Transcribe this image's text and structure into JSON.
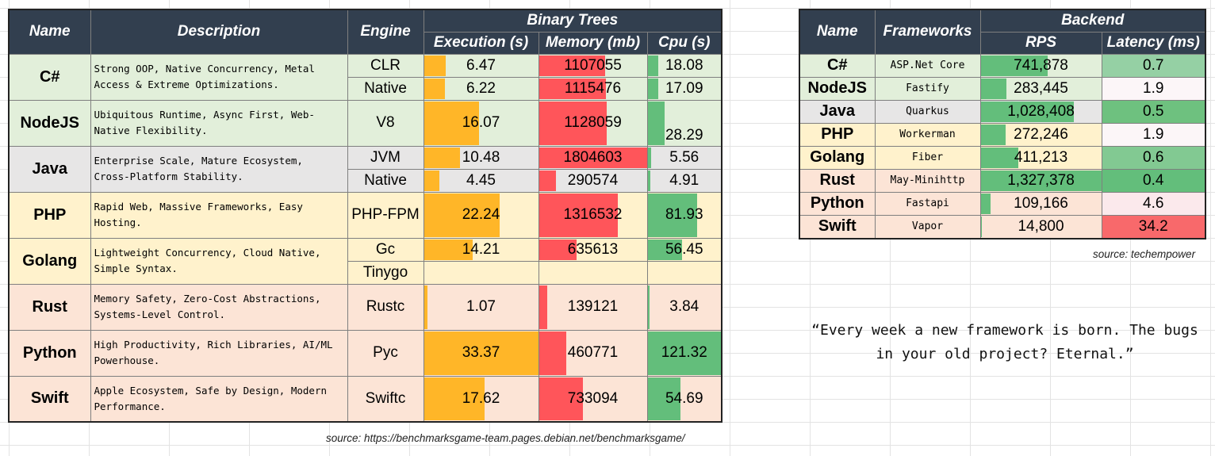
{
  "main_table": {
    "headers": {
      "name": "Name",
      "description": "Description",
      "engine": "Engine",
      "group": "Binary Trees",
      "execution": "Execution (s)",
      "memory": "Memory (mb)",
      "cpu": "Cpu (s)"
    },
    "languages": [
      {
        "name": "C#",
        "description": "Strong OOP, Native Concurrency, Metal Access & Extreme Optimizations.",
        "bg": "#e2efda",
        "engines": [
          {
            "engine": "CLR",
            "execution": 6.47,
            "memory": 1107055,
            "cpu": 18.08
          },
          {
            "engine": "Native",
            "execution": 6.22,
            "memory": 1115476,
            "cpu": 17.09
          }
        ]
      },
      {
        "name": "NodeJS",
        "description": "Ubiquitous Runtime, Async First, Web-Native Flexibility.",
        "bg": "#e2efda",
        "engines": [
          {
            "engine": "V8",
            "execution": 16.07,
            "memory": 1128059,
            "cpu": 28.29
          }
        ]
      },
      {
        "name": "Java",
        "description": "Enterprise Scale, Mature Ecosystem, Cross-Platform Stability.",
        "bg": "#e7e6e6",
        "engines": [
          {
            "engine": "JVM",
            "execution": 10.48,
            "memory": 1804603,
            "cpu": 5.56
          },
          {
            "engine": "Native",
            "execution": 4.45,
            "memory": 290574,
            "cpu": 4.91
          }
        ]
      },
      {
        "name": "PHP",
        "description": "Rapid Web, Massive Frameworks, Easy Hosting.",
        "bg": "#fff2cc",
        "engines": [
          {
            "engine": "PHP-FPM",
            "execution": 22.24,
            "memory": 1316532,
            "cpu": 81.93
          }
        ]
      },
      {
        "name": "Golang",
        "description": "Lightweight Concurrency, Cloud Native, Simple Syntax.",
        "bg": "#fff2cc",
        "engines": [
          {
            "engine": "Gc",
            "execution": 14.21,
            "memory": 635613,
            "cpu": 56.45
          },
          {
            "engine": "Tinygo",
            "execution": null,
            "memory": null,
            "cpu": null
          }
        ]
      },
      {
        "name": "Rust",
        "description": "Memory Safety, Zero-Cost Abstractions, Systems-Level Control.",
        "bg": "#fce4d6",
        "engines": [
          {
            "engine": "Rustc",
            "execution": 1.07,
            "memory": 139121,
            "cpu": 3.84
          }
        ]
      },
      {
        "name": "Python",
        "description": "High Productivity, Rich Libraries, AI/ML Powerhouse.",
        "bg": "#fce4d6",
        "engines": [
          {
            "engine": "Pyc",
            "execution": 33.37,
            "memory": 460771,
            "cpu": 121.32
          }
        ]
      },
      {
        "name": "Swift",
        "description": "Apple Ecosystem, Safe by Design, Modern Performance.",
        "bg": "#fce4d6",
        "engines": [
          {
            "engine": "Swiftc",
            "execution": 17.62,
            "memory": 733094,
            "cpu": 54.69
          }
        ]
      }
    ],
    "source": "source: https://benchmarksgame-team.pages.debian.net/benchmarksgame/"
  },
  "backend_table": {
    "headers": {
      "name": "Name",
      "frameworks": "Frameworks",
      "group": "Backend",
      "rps": "RPS",
      "latency": "Latency (ms)"
    },
    "rows": [
      {
        "name": "C#",
        "framework": "ASP.Net Core",
        "rps": 741878,
        "rps_text": "741,878",
        "latency": 0.7,
        "bg": "#e2efda",
        "lat_color": "#95d0a4"
      },
      {
        "name": "NodeJS",
        "framework": "Fastify",
        "rps": 283445,
        "rps_text": "283,445",
        "latency": 1.9,
        "bg": "#e2efda",
        "lat_color": "#fcf6f8"
      },
      {
        "name": "Java",
        "framework": "Quarkus",
        "rps": 1028408,
        "rps_text": "1,028,408",
        "latency": 0.5,
        "bg": "#e7e6e6",
        "lat_color": "#6ec17f"
      },
      {
        "name": "PHP",
        "framework": "Workerman",
        "rps": 272246,
        "rps_text": "272,246",
        "latency": 1.9,
        "bg": "#fff2cc",
        "lat_color": "#fcf6f8"
      },
      {
        "name": "Golang",
        "framework": "Fiber",
        "rps": 411213,
        "rps_text": "411,213",
        "latency": 0.6,
        "bg": "#fff2cc",
        "lat_color": "#82c992"
      },
      {
        "name": "Rust",
        "framework": "May-Minihttp",
        "rps": 1327378,
        "rps_text": "1,327,378",
        "latency": 0.4,
        "bg": "#fce4d6",
        "lat_color": "#63be7b"
      },
      {
        "name": "Python",
        "framework": "Fastapi",
        "rps": 109166,
        "rps_text": "109,166",
        "latency": 4.6,
        "bg": "#fce4d6",
        "lat_color": "#fbe9ec"
      },
      {
        "name": "Swift",
        "framework": "Vapor",
        "rps": 14800,
        "rps_text": "14,800",
        "latency": 34.2,
        "bg": "#fce4d6",
        "lat_color": "#f8696b"
      }
    ],
    "source": "source: techempower"
  },
  "quote": "“Every week a new framework is born. The bugs in your old project? Eternal.”",
  "colors": {
    "header_bg": "#323f4f",
    "execution_bar": "#ffb628",
    "memory_bar": "#ff555a",
    "cpu_bar": "#63be7b",
    "rps_bar": "#63be7b"
  },
  "chart_data": [
    {
      "type": "table",
      "title": "Binary Trees",
      "columns": [
        "Name",
        "Engine",
        "Execution (s)",
        "Memory (mb)",
        "Cpu (s)"
      ],
      "rows": [
        [
          "C#",
          "CLR",
          6.47,
          1107055,
          18.08
        ],
        [
          "C#",
          "Native",
          6.22,
          1115476,
          17.09
        ],
        [
          "NodeJS",
          "V8",
          16.07,
          1128059,
          28.29
        ],
        [
          "Java",
          "JVM",
          10.48,
          1804603,
          5.56
        ],
        [
          "Java",
          "Native",
          4.45,
          290574,
          4.91
        ],
        [
          "PHP",
          "PHP-FPM",
          22.24,
          1316532,
          81.93
        ],
        [
          "Golang",
          "Gc",
          14.21,
          635613,
          56.45
        ],
        [
          "Golang",
          "Tinygo",
          null,
          null,
          null
        ],
        [
          "Rust",
          "Rustc",
          1.07,
          139121,
          3.84
        ],
        [
          "Python",
          "Pyc",
          33.37,
          460771,
          121.32
        ],
        [
          "Swift",
          "Swiftc",
          17.62,
          733094,
          54.69
        ]
      ]
    },
    {
      "type": "table",
      "title": "Backend",
      "columns": [
        "Name",
        "Frameworks",
        "RPS",
        "Latency (ms)"
      ],
      "rows": [
        [
          "C#",
          "ASP.Net Core",
          741878,
          0.7
        ],
        [
          "NodeJS",
          "Fastify",
          283445,
          1.9
        ],
        [
          "Java",
          "Quarkus",
          1028408,
          0.5
        ],
        [
          "PHP",
          "Workerman",
          272246,
          1.9
        ],
        [
          "Golang",
          "Fiber",
          411213,
          0.6
        ],
        [
          "Rust",
          "May-Minihttp",
          1327378,
          0.4
        ],
        [
          "Python",
          "Fastapi",
          109166,
          4.6
        ],
        [
          "Swift",
          "Vapor",
          14800,
          34.2
        ]
      ]
    }
  ]
}
